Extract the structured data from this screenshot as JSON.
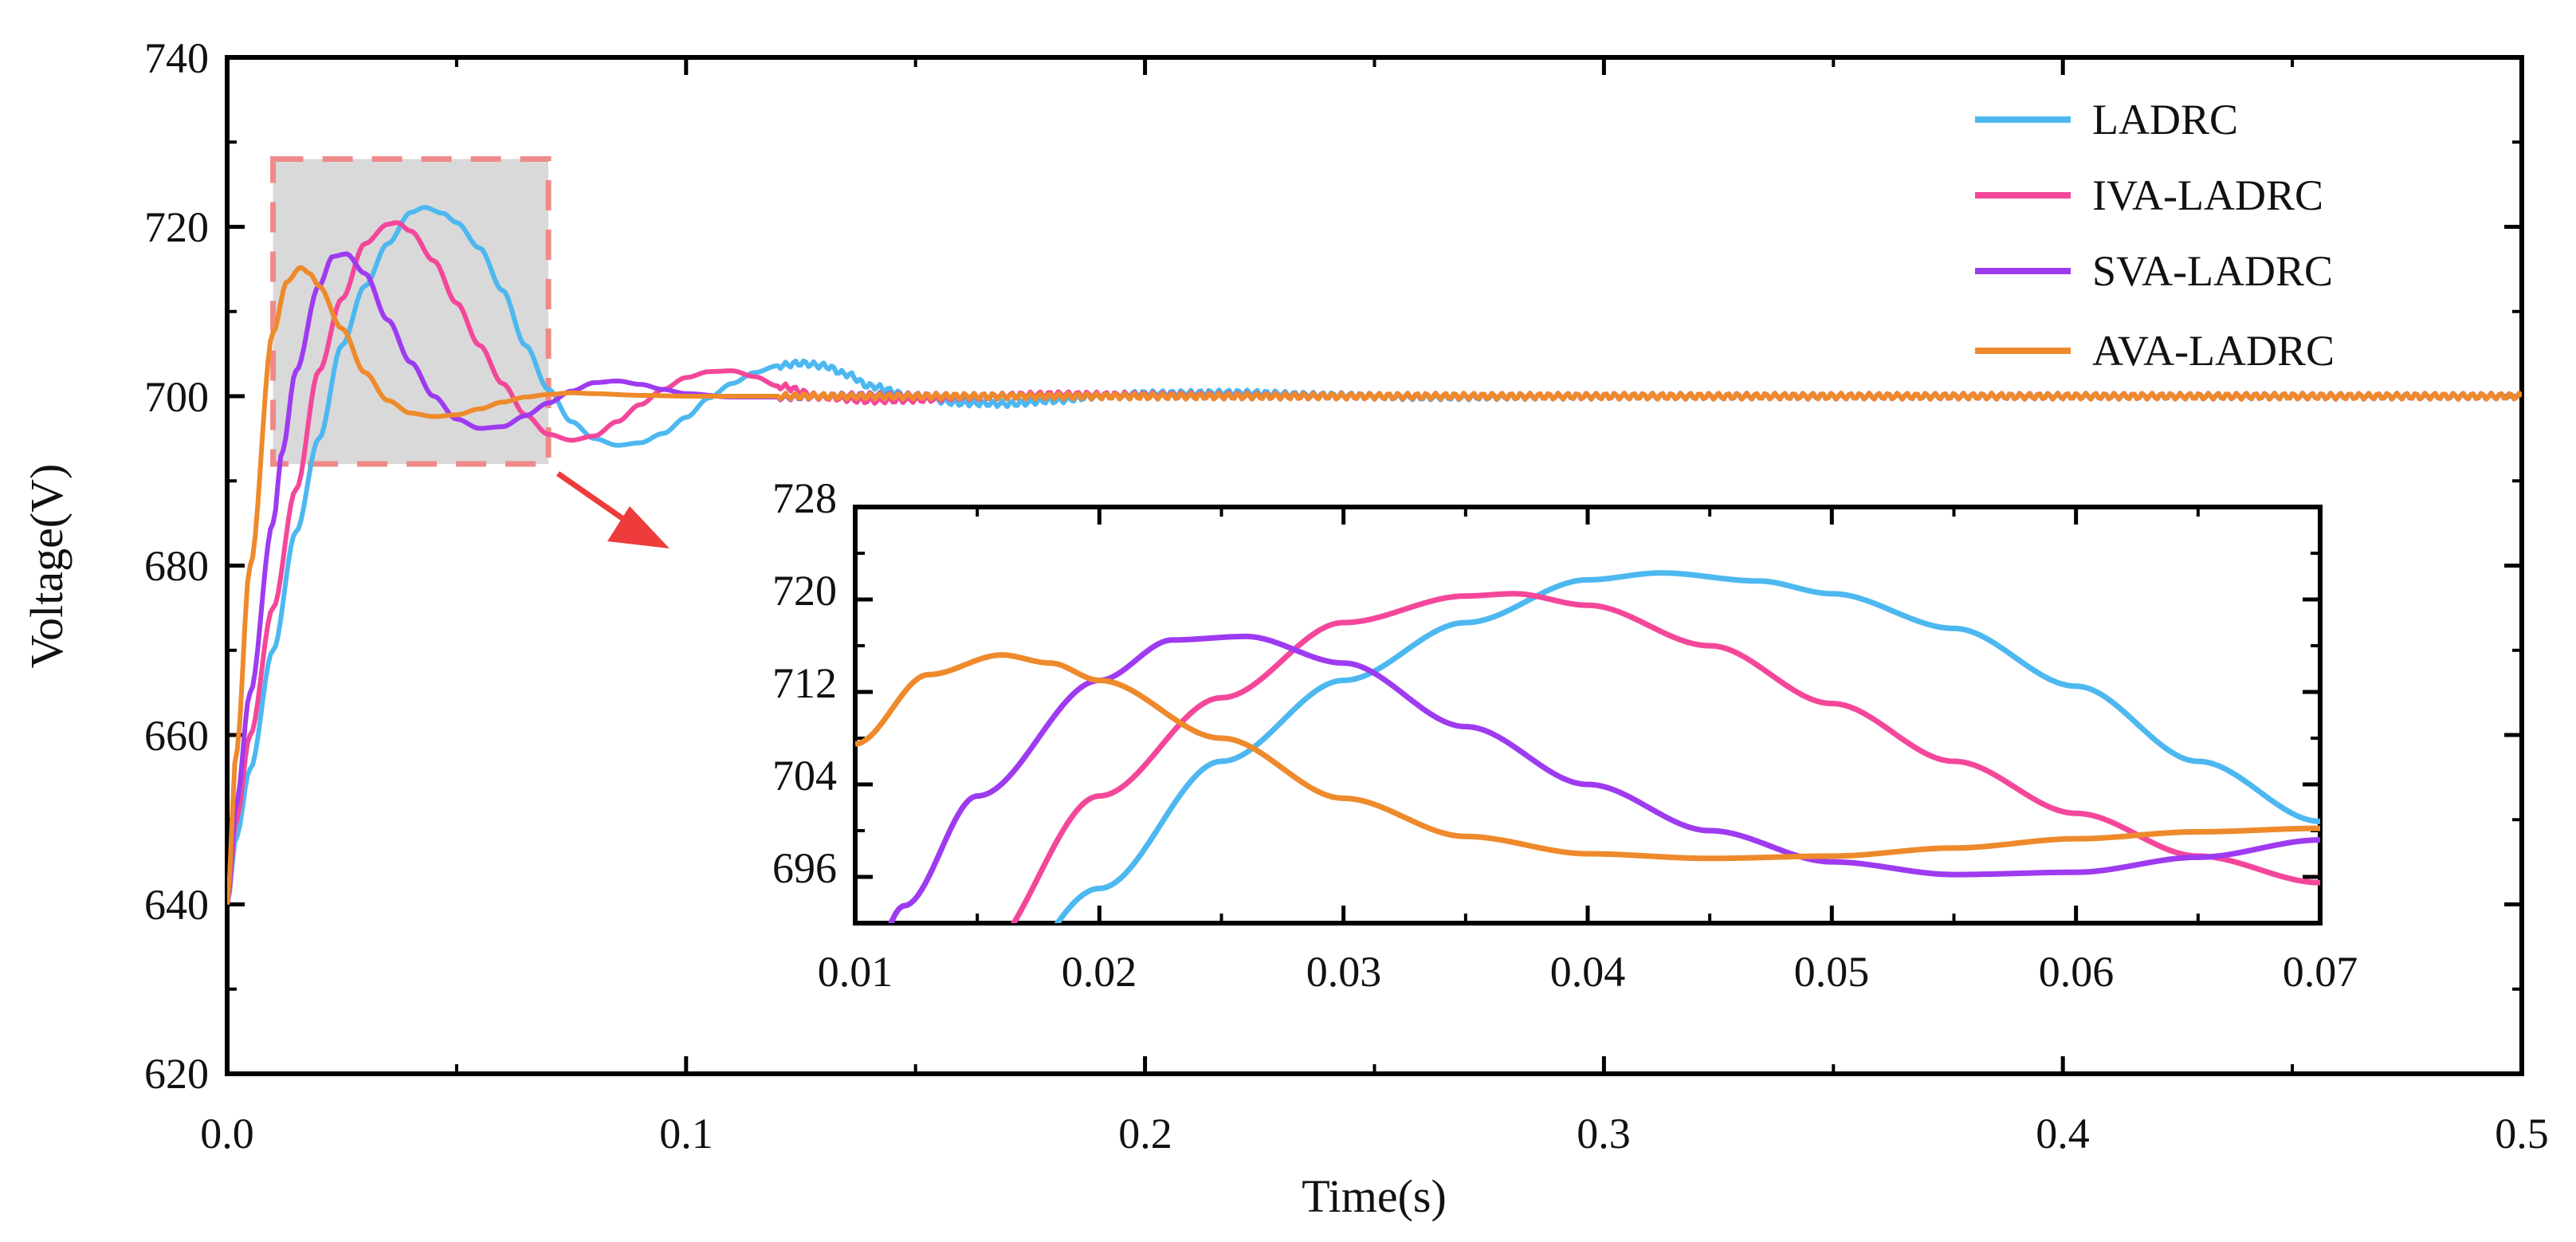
{
  "chart_data": {
    "type": "line",
    "xlabel": "Time(s)",
    "ylabel": "Voltage(V)",
    "xlim": [
      0,
      0.5
    ],
    "ylim": [
      620,
      740
    ],
    "x_ticks": [
      "0.0",
      "0.1",
      "0.2",
      "0.3",
      "0.4",
      "0.5"
    ],
    "y_ticks": [
      "620",
      "640",
      "660",
      "680",
      "700",
      "720",
      "740"
    ],
    "legend_position": "top-right",
    "series": [
      {
        "name": "LADRC",
        "color": "#4DB8F0",
        "points": [
          [
            0,
            640
          ],
          [
            0.002,
            648
          ],
          [
            0.005,
            656
          ],
          [
            0.01,
            670
          ],
          [
            0.015,
            684
          ],
          [
            0.02,
            695
          ],
          [
            0.025,
            706
          ],
          [
            0.03,
            713
          ],
          [
            0.035,
            718
          ],
          [
            0.04,
            721.7
          ],
          [
            0.043,
            722.3
          ],
          [
            0.047,
            721.6
          ],
          [
            0.05,
            720.5
          ],
          [
            0.055,
            717.5
          ],
          [
            0.06,
            712.5
          ],
          [
            0.065,
            706
          ],
          [
            0.07,
            700.8
          ],
          [
            0.075,
            697
          ],
          [
            0.08,
            695
          ],
          [
            0.085,
            694.2
          ],
          [
            0.09,
            694.5
          ],
          [
            0.095,
            695.6
          ],
          [
            0.1,
            697.5
          ],
          [
            0.105,
            699.8
          ],
          [
            0.11,
            701.5
          ],
          [
            0.115,
            702.8
          ],
          [
            0.12,
            703.6
          ],
          [
            0.125,
            703.9
          ],
          [
            0.13,
            703.6
          ],
          [
            0.135,
            702.6
          ],
          [
            0.14,
            701.2
          ],
          [
            0.15,
            699.9
          ],
          [
            0.16,
            699.2
          ],
          [
            0.17,
            699.1
          ],
          [
            0.18,
            699.5
          ],
          [
            0.19,
            700.0
          ],
          [
            0.2,
            700.3
          ],
          [
            0.22,
            700.4
          ],
          [
            0.24,
            700.1
          ],
          [
            0.26,
            699.9
          ],
          [
            0.3,
            700.0
          ],
          [
            0.5,
            700.0
          ]
        ]
      },
      {
        "name": "IVA-LADRC",
        "color": "#F4479A",
        "points": [
          [
            0,
            640
          ],
          [
            0.002,
            650
          ],
          [
            0.005,
            660
          ],
          [
            0.01,
            675
          ],
          [
            0.015,
            689
          ],
          [
            0.02,
            703
          ],
          [
            0.025,
            711.5
          ],
          [
            0.03,
            718
          ],
          [
            0.035,
            720.3
          ],
          [
            0.037,
            720.5
          ],
          [
            0.04,
            719.5
          ],
          [
            0.045,
            716
          ],
          [
            0.05,
            711
          ],
          [
            0.055,
            706
          ],
          [
            0.06,
            701.5
          ],
          [
            0.065,
            697.8
          ],
          [
            0.07,
            695.5
          ],
          [
            0.075,
            694.8
          ],
          [
            0.08,
            695.3
          ],
          [
            0.085,
            697
          ],
          [
            0.09,
            699
          ],
          [
            0.095,
            700.8
          ],
          [
            0.1,
            702.2
          ],
          [
            0.105,
            702.9
          ],
          [
            0.11,
            703.0
          ],
          [
            0.115,
            702.3
          ],
          [
            0.12,
            701.2
          ],
          [
            0.13,
            699.9
          ],
          [
            0.14,
            699.5
          ],
          [
            0.15,
            699.6
          ],
          [
            0.16,
            699.9
          ],
          [
            0.18,
            700.2
          ],
          [
            0.2,
            700.1
          ],
          [
            0.25,
            700.0
          ],
          [
            0.5,
            700.0
          ]
        ]
      },
      {
        "name": "SVA-LADRC",
        "color": "#9E3BF0",
        "points": [
          [
            0,
            640
          ],
          [
            0.002,
            652
          ],
          [
            0.005,
            665
          ],
          [
            0.01,
            685
          ],
          [
            0.012,
            693.5
          ],
          [
            0.015,
            703
          ],
          [
            0.02,
            713
          ],
          [
            0.023,
            716.5
          ],
          [
            0.026,
            716.8
          ],
          [
            0.03,
            714.5
          ],
          [
            0.035,
            709
          ],
          [
            0.04,
            704
          ],
          [
            0.045,
            700
          ],
          [
            0.05,
            697.3
          ],
          [
            0.055,
            696.2
          ],
          [
            0.06,
            696.4
          ],
          [
            0.065,
            697.7
          ],
          [
            0.07,
            699.2
          ],
          [
            0.075,
            700.6
          ],
          [
            0.08,
            701.6
          ],
          [
            0.085,
            701.8
          ],
          [
            0.09,
            701.4
          ],
          [
            0.095,
            700.8
          ],
          [
            0.1,
            700.3
          ],
          [
            0.11,
            699.9
          ],
          [
            0.12,
            699.9
          ],
          [
            0.14,
            700.1
          ],
          [
            0.16,
            700.0
          ],
          [
            0.5,
            700.0
          ]
        ]
      },
      {
        "name": "AVA-LADRC",
        "color": "#EE8A2C",
        "points": [
          [
            0,
            640
          ],
          [
            0.002,
            658
          ],
          [
            0.005,
            680
          ],
          [
            0.01,
            707.5
          ],
          [
            0.013,
            713.5
          ],
          [
            0.016,
            715.2
          ],
          [
            0.018,
            714.5
          ],
          [
            0.02,
            713
          ],
          [
            0.025,
            708
          ],
          [
            0.03,
            702.8
          ],
          [
            0.035,
            699.5
          ],
          [
            0.04,
            698
          ],
          [
            0.045,
            697.6
          ],
          [
            0.05,
            697.8
          ],
          [
            0.055,
            698.5
          ],
          [
            0.06,
            699.3
          ],
          [
            0.065,
            699.9
          ],
          [
            0.07,
            700.2
          ],
          [
            0.075,
            700.4
          ],
          [
            0.08,
            700.3
          ],
          [
            0.09,
            700.1
          ],
          [
            0.1,
            700.0
          ],
          [
            0.5,
            700.0
          ]
        ]
      }
    ],
    "inset": {
      "xlim": [
        0.01,
        0.07
      ],
      "ylim": [
        692,
        728
      ],
      "x_ticks": [
        "0.01",
        "0.02",
        "0.03",
        "0.04",
        "0.05",
        "0.06",
        "0.07"
      ],
      "y_ticks": [
        "696",
        "704",
        "712",
        "720",
        "728"
      ],
      "zoom_region": {
        "x": [
          0.01,
          0.07
        ],
        "y": [
          692,
          728
        ]
      }
    }
  }
}
